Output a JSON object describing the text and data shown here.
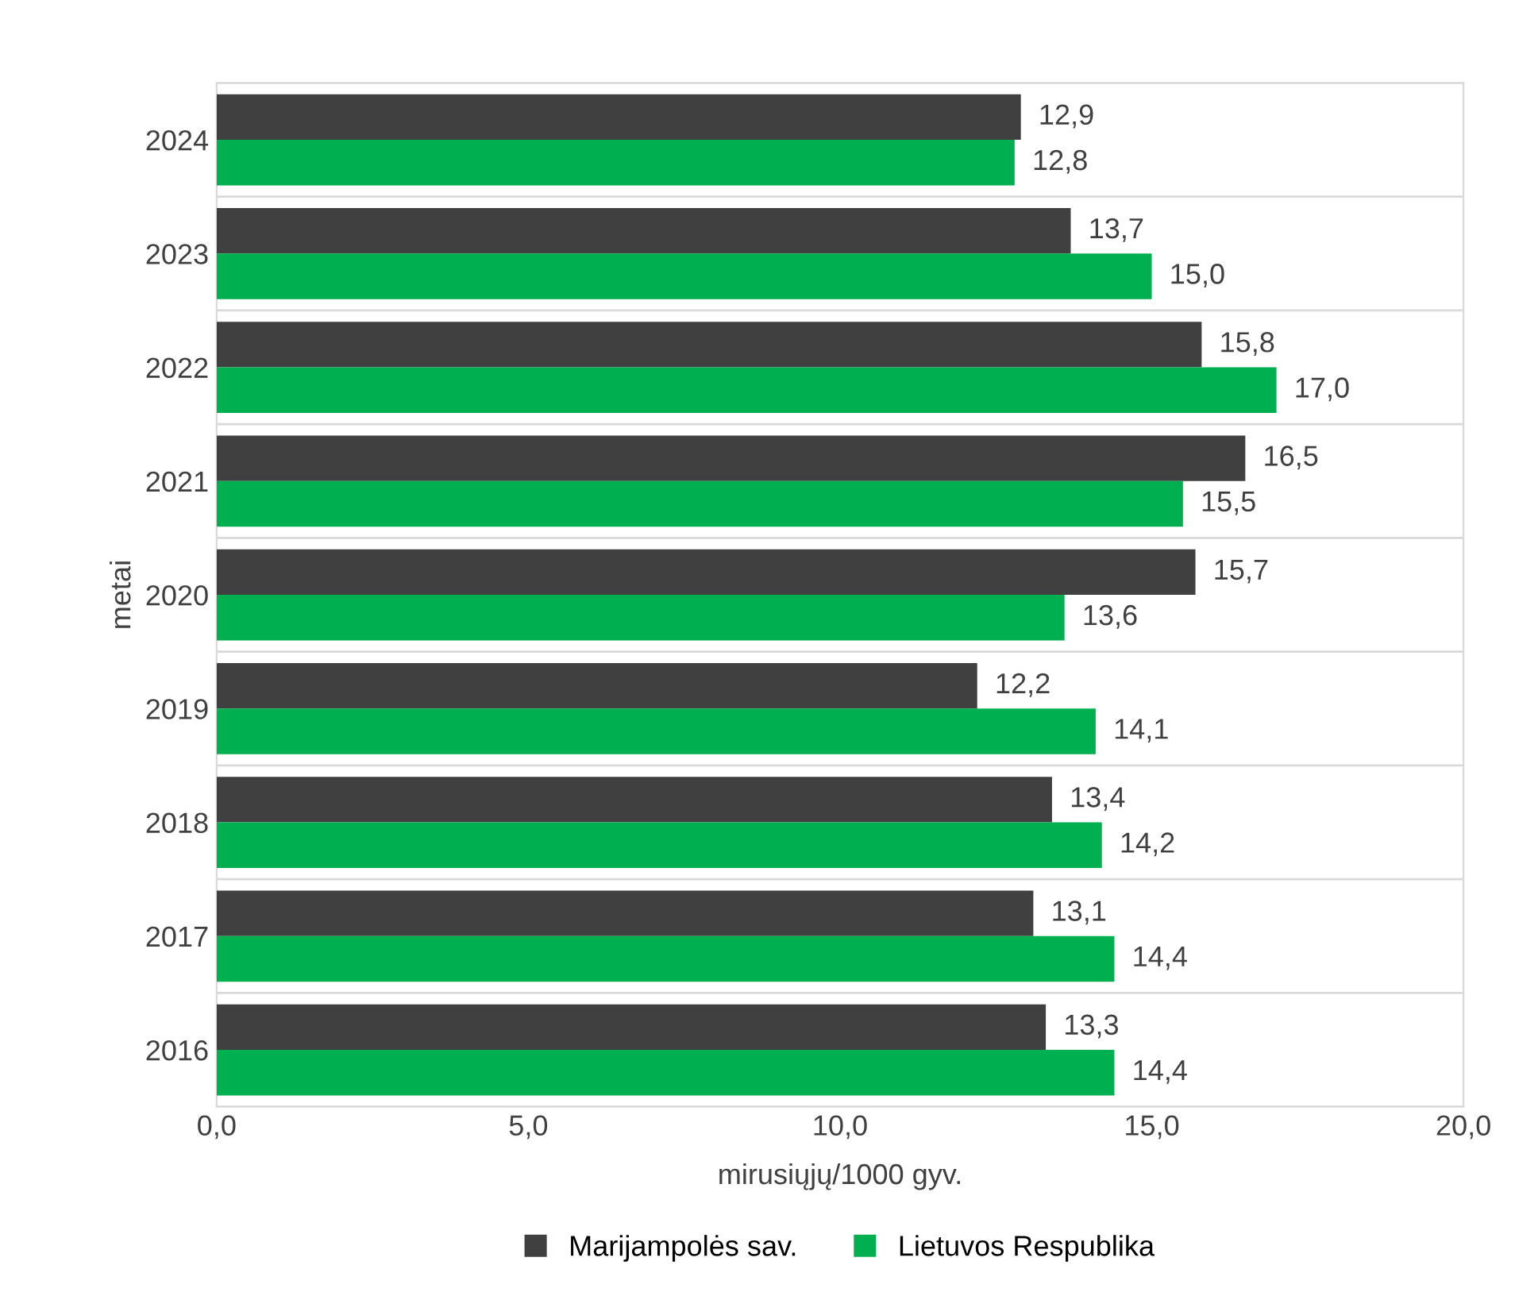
{
  "chart_data": {
    "type": "bar",
    "orientation": "horizontal",
    "xlabel": "mirusiųjų/1000 gyv.",
    "ylabel": "metai",
    "categories": [
      "2024",
      "2023",
      "2022",
      "2021",
      "2020",
      "2019",
      "2018",
      "2017",
      "2016"
    ],
    "series": [
      {
        "name": "Marijampolės sav.",
        "color": "#404040",
        "values": [
          12.9,
          13.7,
          15.8,
          16.5,
          15.7,
          12.2,
          13.4,
          13.1,
          13.3
        ],
        "value_labels": [
          "12,9",
          "13,7",
          "15,8",
          "16,5",
          "15,7",
          "12,2",
          "13,4",
          "13,1",
          "13,3"
        ]
      },
      {
        "name": "Lietuvos Respublika",
        "color": "#00b050",
        "values": [
          12.8,
          15.0,
          17.0,
          15.5,
          13.6,
          14.1,
          14.2,
          14.4,
          14.4
        ],
        "value_labels": [
          "12,8",
          "15,0",
          "17,0",
          "15,5",
          "13,6",
          "14,1",
          "14,2",
          "14,4",
          "14,4"
        ]
      }
    ],
    "xlim": [
      0,
      20
    ],
    "xticks": [
      {
        "value": 0,
        "label": "0,0"
      },
      {
        "value": 5,
        "label": "5,0"
      },
      {
        "value": 10,
        "label": "10,0"
      },
      {
        "value": 15,
        "label": "15,0"
      },
      {
        "value": 20,
        "label": "20,0"
      }
    ],
    "grid": "y",
    "legend": "bottom"
  }
}
